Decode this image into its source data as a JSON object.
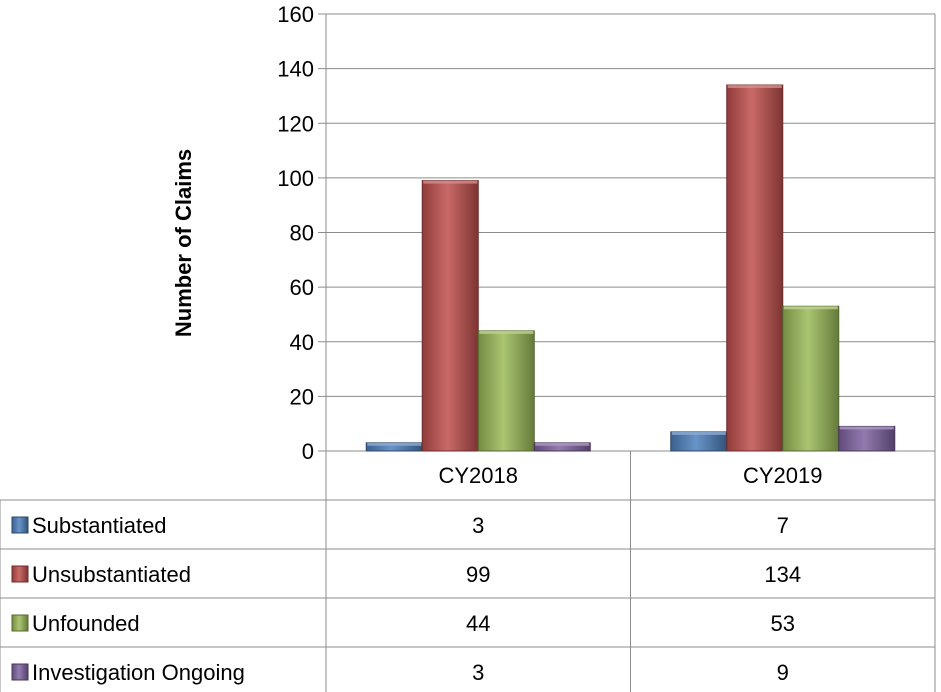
{
  "chart_data": {
    "type": "bar",
    "title": "",
    "xlabel": "",
    "ylabel": "Number of Claims",
    "ylim": [
      0,
      160
    ],
    "yticks": [
      0,
      20,
      40,
      60,
      80,
      100,
      120,
      140,
      160
    ],
    "categories": [
      "CY2018",
      "CY2019"
    ],
    "grid": true,
    "legend": "data-table",
    "series": [
      {
        "name": "Substantiated",
        "values": [
          3,
          7
        ],
        "color": "#4f81bd"
      },
      {
        "name": "Unsubstantiated",
        "values": [
          99,
          134
        ],
        "color": "#c0504d"
      },
      {
        "name": "Unfounded",
        "values": [
          44,
          53
        ],
        "color": "#9bbb59"
      },
      {
        "name": "Investigation Ongoing",
        "values": [
          3,
          9
        ],
        "color": "#8064a2"
      }
    ]
  }
}
